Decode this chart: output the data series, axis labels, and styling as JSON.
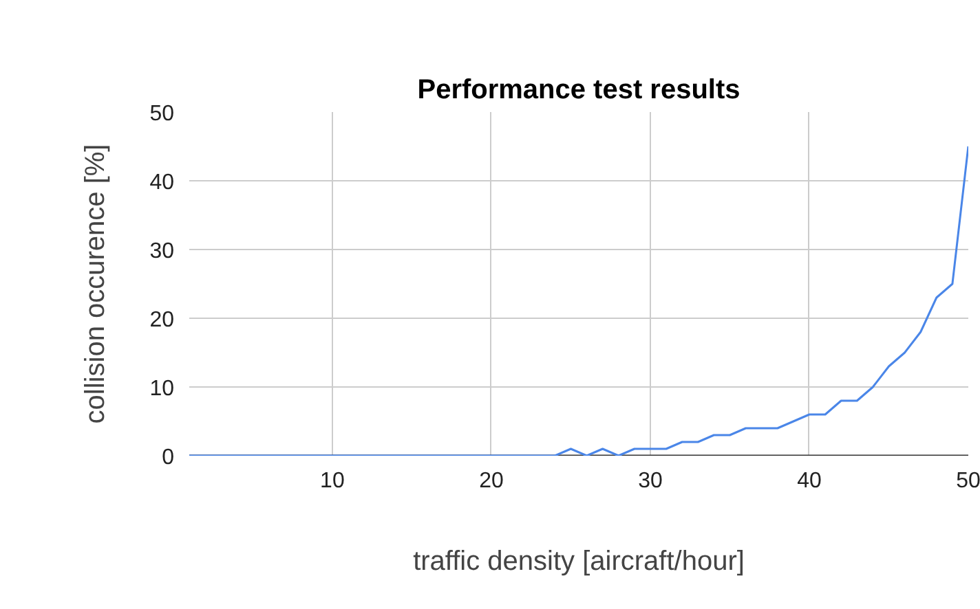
{
  "chart_data": {
    "type": "line",
    "title": "Performance test results",
    "xlabel": "traffic density [aircraft/hour]",
    "ylabel": "collision occurence [%]",
    "x": [
      1,
      2,
      3,
      4,
      5,
      6,
      7,
      8,
      9,
      10,
      11,
      12,
      13,
      14,
      15,
      16,
      17,
      18,
      19,
      20,
      21,
      22,
      23,
      24,
      25,
      26,
      27,
      28,
      29,
      30,
      31,
      32,
      33,
      34,
      35,
      36,
      37,
      38,
      39,
      40,
      41,
      42,
      43,
      44,
      45,
      46,
      47,
      48,
      49,
      50
    ],
    "series": [
      {
        "color": "#4a86e8",
        "values": [
          0,
          0,
          0,
          0,
          0,
          0,
          0,
          0,
          0,
          0,
          0,
          0,
          0,
          0,
          0,
          0,
          0,
          0,
          0,
          0,
          0,
          0,
          0,
          0,
          1,
          0,
          1,
          0,
          1,
          1,
          1,
          2,
          2,
          3,
          3,
          4,
          4,
          4,
          5,
          6,
          6,
          8,
          8,
          10,
          13,
          15,
          18,
          23,
          25,
          45
        ]
      }
    ],
    "xlim": [
      1,
      50
    ],
    "ylim": [
      0,
      50
    ],
    "xticks": [
      10,
      20,
      30,
      40,
      50
    ],
    "yticks": [
      0,
      10,
      20,
      30,
      40,
      50
    ],
    "grid": true,
    "marker": "none",
    "line_style": "solid"
  }
}
